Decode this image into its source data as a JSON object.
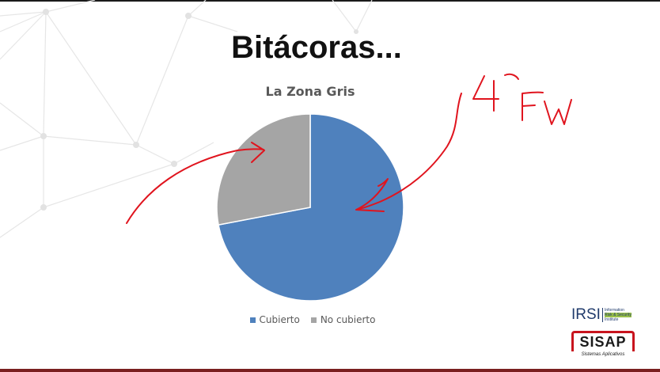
{
  "slide": {
    "title": "Bitácoras...",
    "handwritten_note": "4° FW"
  },
  "chart_data": {
    "type": "pie",
    "title": "La Zona Gris",
    "categories": [
      "Cubierto",
      "No cubierto"
    ],
    "values": [
      72,
      28
    ],
    "colors": [
      "#4f81bd",
      "#a5a5a5"
    ],
    "start_angle_deg": 0,
    "legend_position": "bottom"
  },
  "logos": {
    "irsi": {
      "name": "IRSI",
      "tagline_lines": [
        "Information",
        "Risk & Security",
        "Institute"
      ]
    },
    "sisap": {
      "name": "SISAP",
      "subtitle": "Sistemas Aplicativos"
    }
  },
  "annotation_color": "#e0141e"
}
